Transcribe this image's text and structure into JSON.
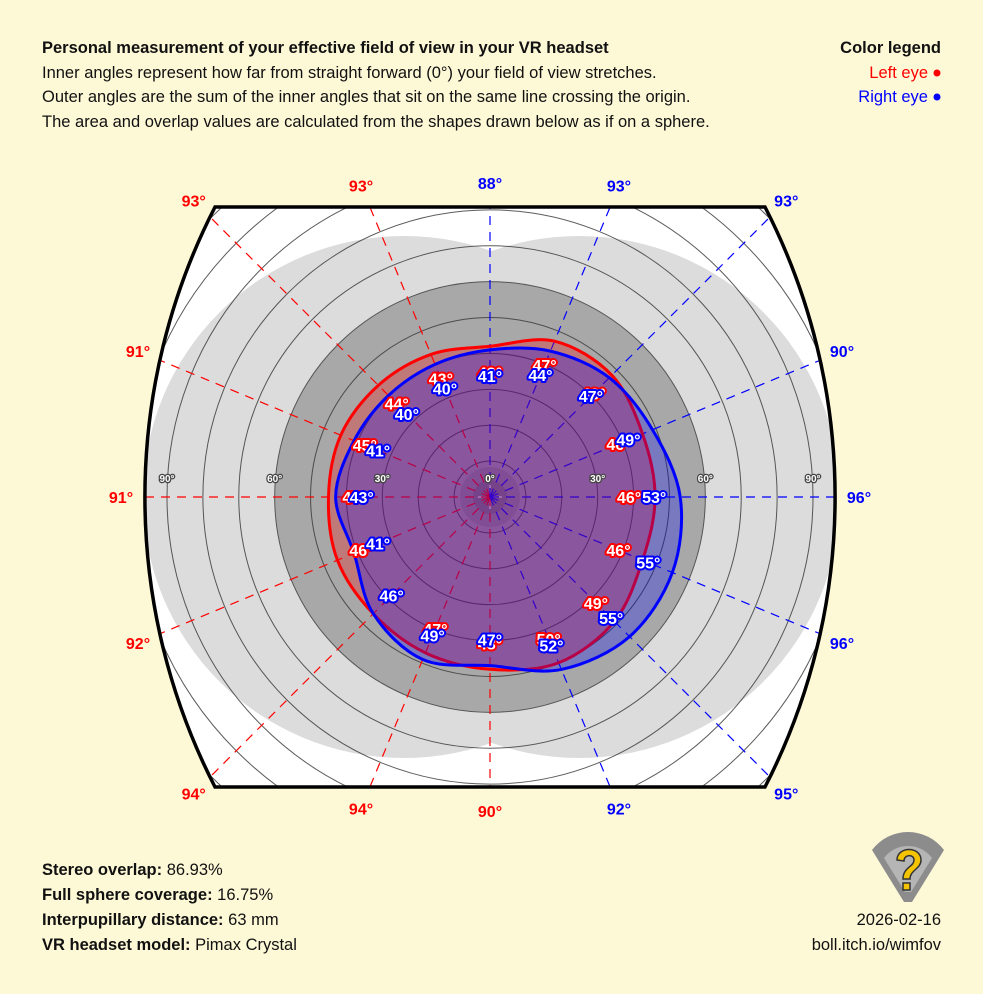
{
  "header": {
    "title": "Personal measurement of your effective field of view in your VR headset",
    "lines": [
      "Inner angles represent how far from straight forward (0°) your field of view stretches.",
      "Outer angles are the sum of the inner angles that sit on the same line crossing the origin.",
      "The area and overlap values are calculated from the shapes drawn below as if on a sphere."
    ]
  },
  "legend": {
    "title": "Color legend"
  },
  "chart_data": {
    "type": "polar",
    "rlim": [
      0,
      90
    ],
    "rticks": [
      {
        "value": 0,
        "label": "0°"
      },
      {
        "value": 30,
        "label": "30°"
      },
      {
        "value": 60,
        "label": "60°"
      },
      {
        "value": 90,
        "label": "90°"
      }
    ],
    "series": [
      {
        "name": "Left eye",
        "color": "#ff0000",
        "values": [
          42,
          43,
          44,
          45,
          45,
          46,
          46,
          47,
          48,
          50,
          49,
          46,
          46,
          46,
          48,
          47
        ],
        "value_labels": [
          "42°",
          "43°",
          "44°",
          "45°",
          "45°",
          "46°",
          "46°",
          "47°",
          "48°",
          "50°",
          "49°",
          "46°",
          "46°",
          "46°",
          "48°",
          "47°"
        ],
        "outer_values": [
          null,
          93,
          93,
          91,
          91,
          92,
          94,
          94,
          90,
          null,
          null,
          null,
          null,
          null,
          null,
          null
        ],
        "outer_labels": [
          null,
          "93°",
          "93°",
          "91°",
          "91°",
          "92°",
          "94°",
          "94°",
          "90°",
          null,
          null,
          null,
          null,
          null,
          null,
          null
        ]
      },
      {
        "name": "Right eye",
        "color": "#0000ff",
        "values": [
          41,
          40,
          40,
          41,
          43,
          41,
          46,
          49,
          47,
          52,
          55,
          55,
          53,
          49,
          47,
          44
        ],
        "value_labels": [
          "41°",
          "40°",
          "40°",
          "41°",
          "43°",
          "41°",
          "46°",
          "49°",
          "47°",
          "52°",
          "55°",
          "55°",
          "53°",
          "49°",
          "47°",
          "44°"
        ],
        "outer_values": [
          88,
          null,
          null,
          null,
          null,
          null,
          null,
          null,
          null,
          92,
          95,
          96,
          96,
          90,
          93,
          93
        ],
        "outer_labels": [
          "88°",
          null,
          null,
          null,
          null,
          null,
          null,
          null,
          null,
          "92°",
          "95°",
          "96°",
          "96°",
          "90°",
          "93°",
          "93°"
        ]
      }
    ]
  },
  "stats": [
    {
      "label": "Stereo overlap:",
      "value": "86.93%"
    },
    {
      "label": "Full sphere coverage:",
      "value": "16.75%"
    },
    {
      "label": "Interpupillary distance:",
      "value": "63 mm"
    },
    {
      "label": "VR headset model:",
      "value": "Pimax Crystal"
    }
  ],
  "footer": {
    "date": "2026-02-16",
    "url": "boll.itch.io/wimfov"
  }
}
